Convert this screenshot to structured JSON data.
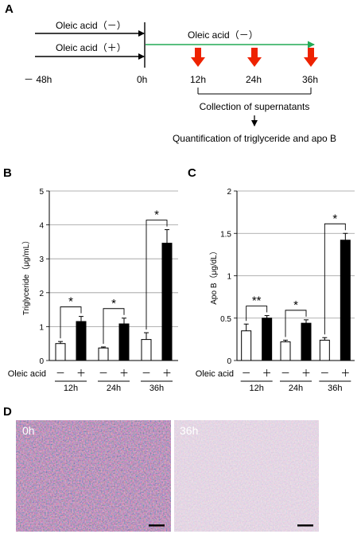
{
  "panel_a": {
    "letter": "A",
    "oleic_minus": "Oleic acid（－）",
    "oleic_plus": "Oleic acid（＋）",
    "oleic_minus_after": "Oleic acid（－）",
    "t_minus48": "－ 48h",
    "t_0": "0h",
    "t_12": "12h",
    "t_24": "24h",
    "t_36": "36h",
    "collection": "Collection of supernatants",
    "quant": "Quantification of triglyceride and apo B",
    "colors": {
      "green_arrow": "#22aa55",
      "red_arrow": "#ee2200"
    }
  },
  "panel_d": {
    "letter": "D",
    "left_label": "0h",
    "right_label": "36h"
  },
  "chart_data": [
    {
      "panel": "B",
      "type": "bar",
      "ylabel": "Triglyceride（μg/mL）",
      "ylim": [
        0,
        5
      ],
      "yticks": [
        "0",
        "1",
        "2",
        "3",
        "4",
        "5"
      ],
      "x_row_label": "Oleic acid",
      "signs": [
        "－",
        "＋"
      ],
      "groups": [
        "12h",
        "24h",
        "36h"
      ],
      "series": [
        {
          "name": "Oleic acid －",
          "values": [
            0.5,
            0.37,
            0.62
          ],
          "errors": [
            0.06,
            0.03,
            0.2
          ]
        },
        {
          "name": "Oleic acid ＋",
          "values": [
            1.15,
            1.08,
            3.46
          ],
          "errors": [
            0.15,
            0.17,
            0.4
          ]
        }
      ],
      "significance": [
        "*",
        "*",
        "*"
      ],
      "grid": true
    },
    {
      "panel": "C",
      "type": "bar",
      "ylabel": "Apo B（μg/dL）",
      "ylim": [
        0,
        2
      ],
      "yticks": [
        "0",
        "0.5",
        "1",
        "1.5",
        "2"
      ],
      "x_row_label": "Oleic acid",
      "signs": [
        "－",
        "＋"
      ],
      "groups": [
        "12h",
        "24h",
        "36h"
      ],
      "series": [
        {
          "name": "Oleic acid －",
          "values": [
            0.35,
            0.22,
            0.24
          ],
          "errors": [
            0.08,
            0.02,
            0.03
          ]
        },
        {
          "name": "Oleic acid ＋",
          "values": [
            0.5,
            0.44,
            1.42
          ],
          "errors": [
            0.03,
            0.04,
            0.08
          ]
        }
      ],
      "significance": [
        "**",
        "*",
        "*"
      ],
      "grid": true
    }
  ]
}
